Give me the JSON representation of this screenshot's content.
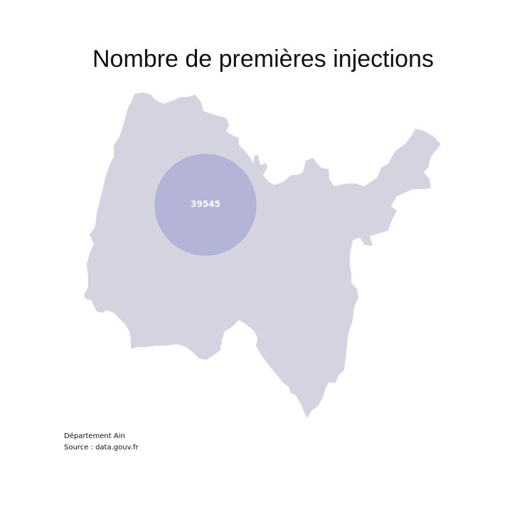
{
  "title": "Nombre de premières injections",
  "map": {
    "region_fill": "#d4d4e0",
    "bubble_fill": "#b1b1d8",
    "bubble_stroke": "#a9a9d2",
    "bubble_value": "39545"
  },
  "footer": {
    "line1": "Département Ain",
    "line2": "Source : data.gouv.fr"
  }
}
